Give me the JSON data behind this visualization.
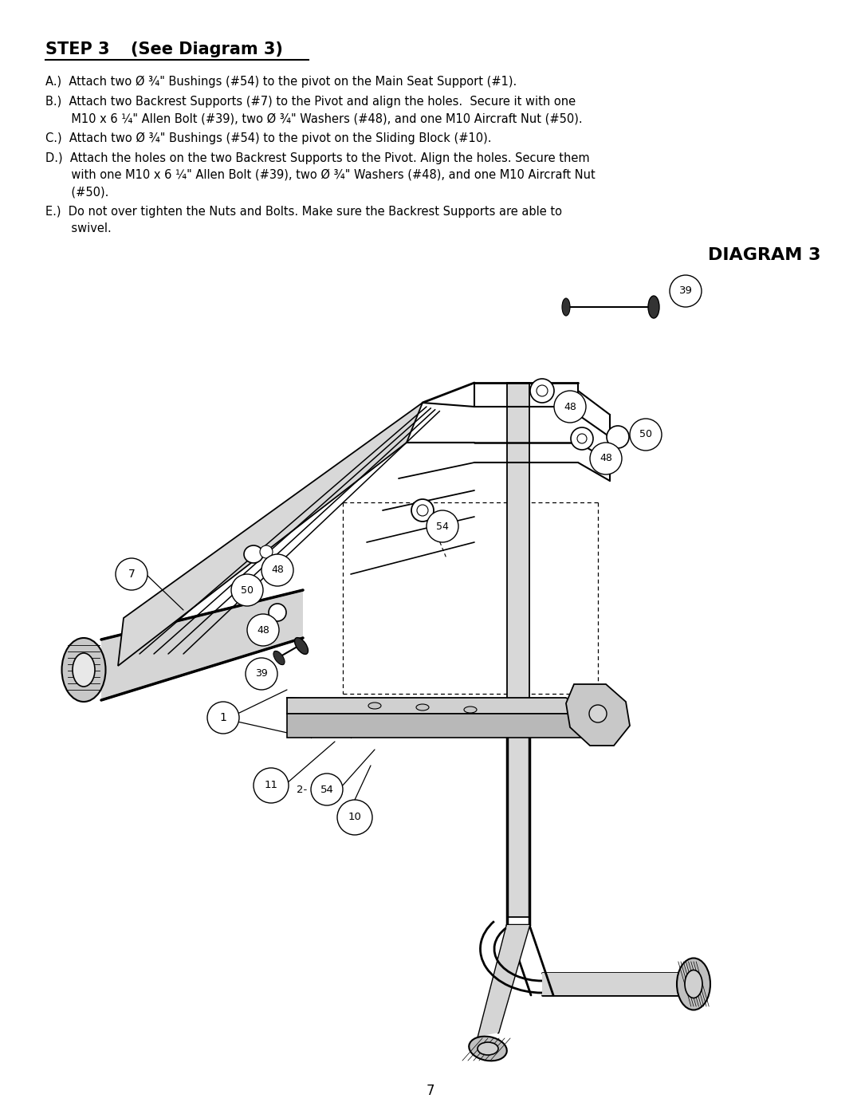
{
  "title_bold": "STEP 3",
  "title_normal": "    (See Diagram 3)",
  "diagram_title": "DIAGRAM 3",
  "page_number": "7",
  "background_color": "#ffffff",
  "text_color": "#000000",
  "line_A": "A.)  Attach two Ø ¾\" Bushings (#54) to the pivot on the Main Seat Support (#1).",
  "line_B1": "B.)  Attach two Backrest Supports (#7) to the Pivot and align the holes.  Secure it with one",
  "line_B2": "       M10 x 6 ¼\" Allen Bolt (#39), two Ø ¾\" Washers (#48), and one M10 Aircraft Nut (#50).",
  "line_C": "C.)  Attach two Ø ¾\" Bushings (#54) to the pivot on the Sliding Block (#10).",
  "line_D1": "D.)  Attach the holes on the two Backrest Supports to the Pivot. Align the holes. Secure them",
  "line_D2": "       with one M10 x 6 ¼\" Allen Bolt (#39), two Ø ¾\" Washers (#48), and one M10 Aircraft Nut",
  "line_D3": "       (#50).",
  "line_E1": "E.)  Do not over tighten the Nuts and Bolts. Make sure the Backrest Supports are able to",
  "line_E2": "       swivel."
}
